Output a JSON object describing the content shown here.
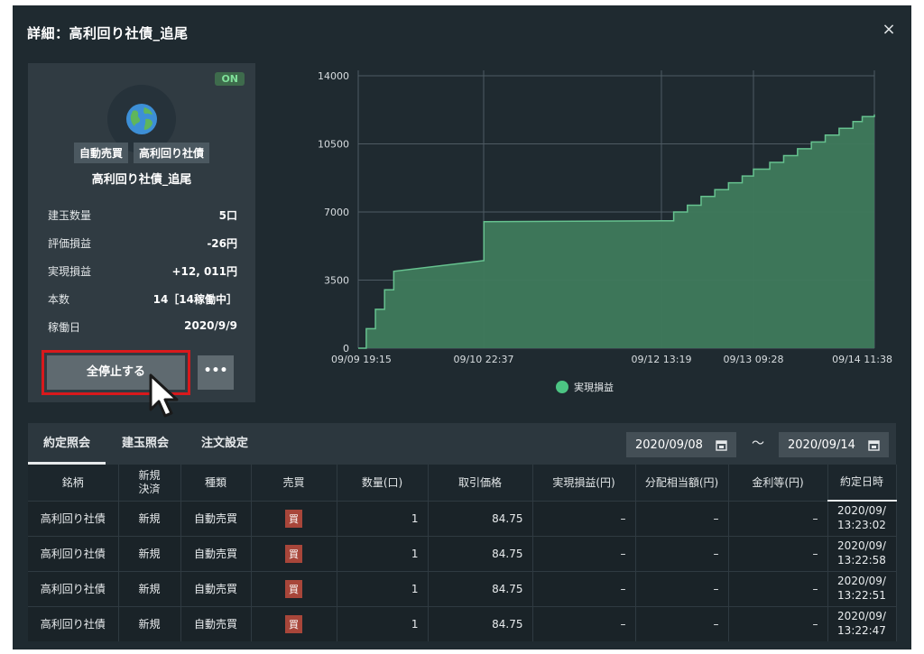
{
  "modal": {
    "title": "詳細：高利回り社債_追尾",
    "close_icon": "×"
  },
  "card": {
    "status": "ON",
    "avatar_icon": "globe-icon",
    "tags": [
      "自動売買",
      "高利回り社債"
    ],
    "name": "高利回り社債_追尾",
    "stats": [
      {
        "label": "建玉数量",
        "value": "5口"
      },
      {
        "label": "評価損益",
        "value": "-26円"
      },
      {
        "label": "実現損益",
        "value": "+12, 011円"
      },
      {
        "label": "本数",
        "value": "14［14稼働中］"
      },
      {
        "label": "稼働日",
        "value": "2020/9/9"
      }
    ],
    "stop_label": "全停止する",
    "more_label": "•••"
  },
  "chart_data": {
    "type": "area",
    "x_ticks": [
      "09/09 19:15",
      "09/10 22:37",
      "09/12 13:19",
      "09/13 09:28",
      "09/14 11:38"
    ],
    "y_ticks": [
      "0",
      "3500",
      "7000",
      "10500",
      "14000"
    ],
    "ylim": [
      0,
      14000
    ],
    "grid": true,
    "legend": [
      "実現損益"
    ],
    "legend_position": "bottom",
    "series": [
      {
        "name": "実現損益",
        "color": "#47916a",
        "points": [
          [
            "09/09 19:15",
            0
          ],
          [
            "09/09 21:00",
            1000
          ],
          [
            "09/09 23:00",
            2000
          ],
          [
            "09/10 01:00",
            3000
          ],
          [
            "09/10 03:00",
            3950
          ],
          [
            "09/10 22:37",
            4500
          ],
          [
            "09/10 22:40",
            6500
          ],
          [
            "09/12 13:19",
            6550
          ],
          [
            "09/12 16:00",
            7000
          ],
          [
            "09/12 19:00",
            7350
          ],
          [
            "09/12 22:00",
            7800
          ],
          [
            "09/13 01:00",
            8150
          ],
          [
            "09/13 04:00",
            8500
          ],
          [
            "09/13 07:00",
            8850
          ],
          [
            "09/13 09:28",
            9200
          ],
          [
            "09/13 13:00",
            9550
          ],
          [
            "09/13 16:00",
            9900
          ],
          [
            "09/13 19:00",
            10250
          ],
          [
            "09/13 22:00",
            10600
          ],
          [
            "09/14 01:00",
            10950
          ],
          [
            "09/14 04:00",
            11300
          ],
          [
            "09/14 07:00",
            11650
          ],
          [
            "09/14 09:00",
            11900
          ],
          [
            "09/14 11:38",
            12011
          ]
        ]
      }
    ]
  },
  "tabs": [
    "約定照会",
    "建玉照会",
    "注文設定"
  ],
  "date_from": "2020/09/08",
  "date_to": "2020/09/14",
  "date_separator": "～",
  "table": {
    "headers": [
      "銘柄",
      "新規\n決済",
      "種類",
      "売買",
      "数量(口)",
      "取引価格",
      "実現損益(円)",
      "分配相当額(円)",
      "金利等(円)",
      "約定日時"
    ],
    "rows": [
      [
        "高利回り社債",
        "新規",
        "自動売買",
        "買",
        "1",
        "84.75",
        "–",
        "–",
        "–",
        "2020/09/\n13:23:02"
      ],
      [
        "高利回り社債",
        "新規",
        "自動売買",
        "買",
        "1",
        "84.75",
        "–",
        "–",
        "–",
        "2020/09/\n13:22:58"
      ],
      [
        "高利回り社債",
        "新規",
        "自動売買",
        "買",
        "1",
        "84.75",
        "–",
        "–",
        "–",
        "2020/09/\n13:22:51"
      ],
      [
        "高利回り社債",
        "新規",
        "自動売買",
        "買",
        "1",
        "84.75",
        "–",
        "–",
        "–",
        "2020/09/\n13:22:47"
      ]
    ]
  }
}
